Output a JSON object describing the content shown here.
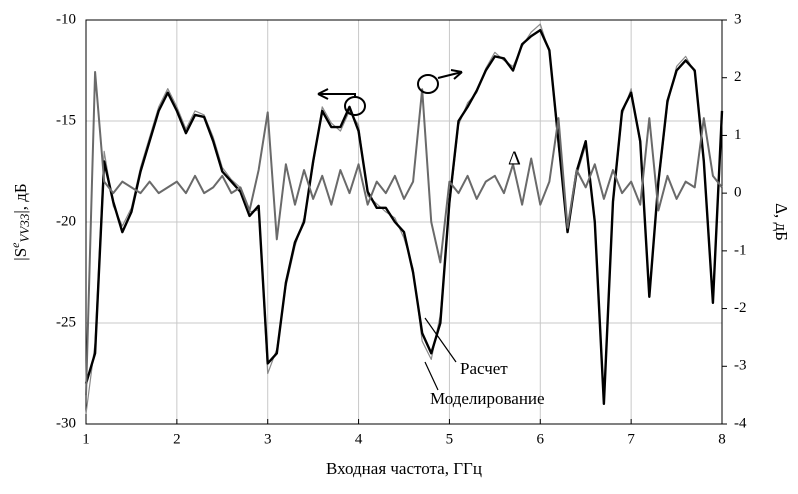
{
  "chart_data": {
    "type": "line",
    "x_label": "Входная частота, ГГц",
    "y_label": {
      "main": "|S",
      "sup": "e",
      "sub": "VV33",
      "rest": "|, дБ"
    },
    "y2_label": "Δ, дБ",
    "x": [
      1.0,
      1.1,
      1.2,
      1.3,
      1.4,
      1.5,
      1.6,
      1.7,
      1.8,
      1.9,
      2.0,
      2.1,
      2.2,
      2.3,
      2.4,
      2.5,
      2.6,
      2.7,
      2.8,
      2.9,
      3.0,
      3.1,
      3.2,
      3.3,
      3.4,
      3.5,
      3.6,
      3.7,
      3.8,
      3.9,
      4.0,
      4.1,
      4.2,
      4.3,
      4.4,
      4.5,
      4.6,
      4.7,
      4.8,
      4.9,
      5.0,
      5.1,
      5.2,
      5.3,
      5.4,
      5.5,
      5.6,
      5.7,
      5.8,
      5.9,
      6.0,
      6.1,
      6.2,
      6.3,
      6.4,
      6.5,
      6.6,
      6.7,
      6.8,
      6.9,
      7.0,
      7.1,
      7.2,
      7.3,
      7.4,
      7.5,
      7.6,
      7.7,
      7.8,
      7.9,
      8.0
    ],
    "series": [
      {
        "name": "Расчет",
        "color": "#8a8a8a",
        "width": 1.2,
        "values": [
          -29.5,
          -26,
          -16.5,
          -19.2,
          -20.2,
          -19.3,
          -17.3,
          -15.8,
          -14.3,
          -13.4,
          -14.3,
          -15.4,
          -14.5,
          -14.7,
          -15.8,
          -17.3,
          -17.9,
          -18.3,
          -19.5,
          -19.4,
          -27.5,
          -26.3,
          -23.2,
          -21.2,
          -19.8,
          -17.2,
          -14.3,
          -15.1,
          -15.5,
          -14.5,
          -15.2,
          -18.7,
          -19.1,
          -19.5,
          -19.8,
          -20.8,
          -22.3,
          -25.9,
          -26.8,
          -24.6,
          -19.3,
          -15.2,
          -14.1,
          -13.6,
          -12.4,
          -11.6,
          -12,
          -12.3,
          -11.3,
          -10.6,
          -10.2,
          -11.6,
          -16.3,
          -20.2,
          -17.7,
          -16.2,
          -19.8,
          -28.7,
          -19.2,
          -14.7,
          -13.4,
          -16.2,
          -23.4,
          -18.2,
          -14.2,
          -12.3,
          -11.8,
          -12.6,
          -16.8,
          -23.8,
          -14.8
        ]
      },
      {
        "name": "Моделирование",
        "color": "#000000",
        "width": 2.4,
        "values": [
          -28,
          -26.5,
          -17,
          -19,
          -20.5,
          -19.5,
          -17.5,
          -16,
          -14.5,
          -13.6,
          -14.5,
          -15.6,
          -14.7,
          -14.8,
          -16,
          -17.5,
          -18,
          -18.5,
          -19.7,
          -19.2,
          -27,
          -26.5,
          -23,
          -21,
          -20,
          -17,
          -14.5,
          -15.3,
          -15.3,
          -14.3,
          -15.5,
          -18.5,
          -19.3,
          -19.3,
          -20,
          -20.5,
          -22.5,
          -25.5,
          -26.5,
          -25,
          -19,
          -15,
          -14.3,
          -13.5,
          -12.5,
          -11.8,
          -11.9,
          -12.5,
          -11.2,
          -10.8,
          -10.5,
          -11.5,
          -16,
          -20.5,
          -17.5,
          -16,
          -20,
          -29,
          -19,
          -14.5,
          -13.6,
          -16,
          -23.7,
          -18,
          -14,
          -12.5,
          -12,
          -12.5,
          -17,
          -24,
          -14.5
        ]
      },
      {
        "name": "Δ",
        "color": "#6a6a6a",
        "width": 2,
        "axis": "y2",
        "values": [
          -3.5,
          2.1,
          0.2,
          0,
          0.2,
          0.1,
          0,
          0.2,
          0,
          0.1,
          0.2,
          0,
          0.3,
          0,
          0.1,
          0.3,
          0,
          0.1,
          -0.3,
          0.4,
          1.4,
          -0.8,
          0.5,
          -0.2,
          0.4,
          -0.1,
          0.3,
          -0.2,
          0.4,
          0,
          0.5,
          -0.2,
          0.2,
          0,
          0.3,
          -0.1,
          0.2,
          1.8,
          -0.5,
          -1.2,
          0.2,
          0,
          0.3,
          -0.1,
          0.2,
          0.3,
          0,
          0.5,
          -0.2,
          0.6,
          -0.2,
          0.2,
          1.3,
          -0.6,
          0.4,
          0.1,
          0.5,
          -0.1,
          0.4,
          0,
          0.2,
          -0.2,
          1.3,
          -0.3,
          0.3,
          -0.1,
          0.2,
          0.1,
          1.3,
          0.3,
          0.1
        ]
      }
    ],
    "xlim": [
      1,
      8
    ],
    "xticks": [
      1,
      2,
      3,
      4,
      5,
      6,
      7,
      8
    ],
    "ylim": [
      -30,
      -10
    ],
    "yticks": [
      -10,
      -15,
      -20,
      -25,
      -30
    ],
    "y2lim": [
      -4,
      3
    ],
    "y2ticks": [
      3,
      2,
      1,
      0,
      -1,
      -2,
      -3,
      -4
    ],
    "grid": true
  }
}
